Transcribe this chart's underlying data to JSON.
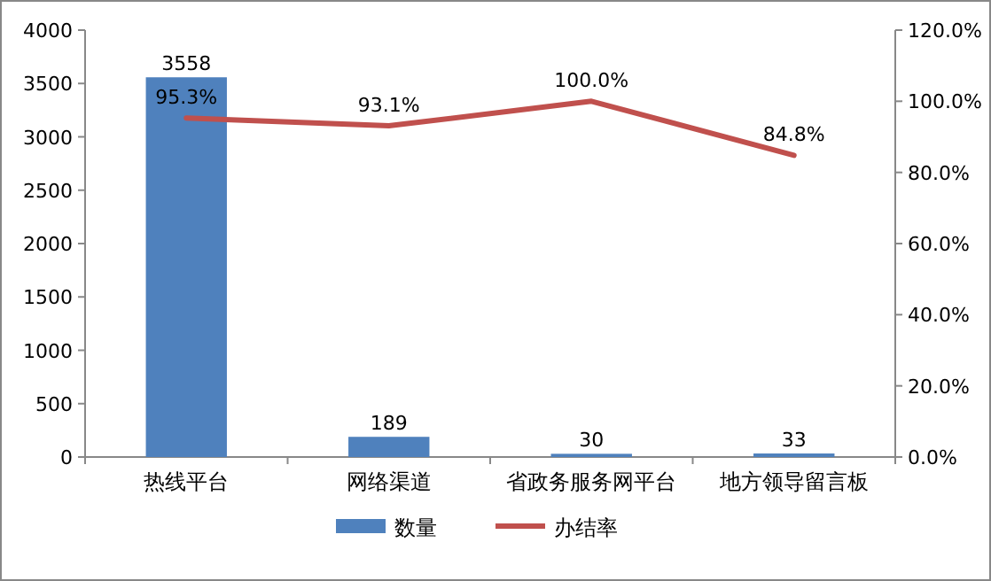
{
  "chart_data": {
    "type": "bar",
    "categories": [
      "热线平台",
      "网络渠道",
      "省政务服务网平台",
      "地方领导留言板"
    ],
    "series": [
      {
        "name": "数量",
        "color": "#4f81bd",
        "values": [
          3558,
          189,
          30,
          33
        ]
      },
      {
        "name": "办结率",
        "type": "line",
        "axis": "y2",
        "color": "#c0504d",
        "values": [
          95.3,
          93.1,
          100.0,
          84.8
        ],
        "value_labels": [
          "95.3%",
          "93.1%",
          "100.0%",
          "84.8%"
        ]
      }
    ],
    "ylim": [
      0,
      4000
    ],
    "yticks": [
      0,
      500,
      1000,
      1500,
      2000,
      2500,
      3000,
      3500,
      4000
    ],
    "y2lim": [
      0,
      120
    ],
    "y2ticks": [
      {
        "value": 0,
        "label": "0.0%"
      },
      {
        "value": 20,
        "label": "20.0%"
      },
      {
        "value": 40,
        "label": "40.0%"
      },
      {
        "value": 60,
        "label": "60.0%"
      },
      {
        "value": 80,
        "label": "80.0%"
      },
      {
        "value": 100,
        "label": "100.0%"
      },
      {
        "value": 120,
        "label": "120.0%"
      }
    ],
    "data_labels": true,
    "legend": "bottom"
  }
}
